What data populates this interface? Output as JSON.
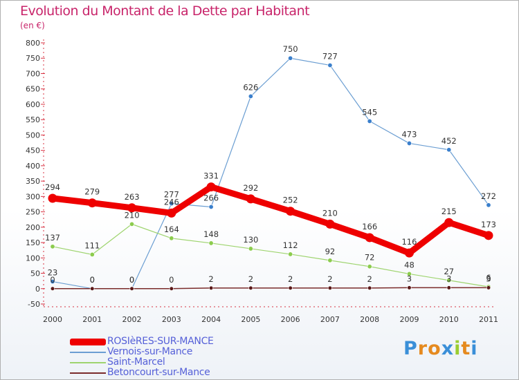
{
  "title": "Evolution du Montant de la Dette par Habitant",
  "subtitle": "(en €)",
  "brand": {
    "text": "Proxiti",
    "letter_colors": [
      "#3a8fd8",
      "#e58a1f",
      "#e58a1f",
      "#3a8fd8",
      "#9acd32",
      "#e58a1f",
      "#3a8fd8"
    ]
  },
  "chart_data": {
    "type": "line",
    "x": [
      "2000",
      "2001",
      "2002",
      "2003",
      "2004",
      "2005",
      "2006",
      "2007",
      "2008",
      "2009",
      "2010",
      "2011"
    ],
    "ylim": [
      -50,
      800
    ],
    "yticks": [
      "800",
      "750",
      "700",
      "650",
      "600",
      "550",
      "500",
      "450",
      "400",
      "350",
      "300",
      "250",
      "200",
      "150",
      "100",
      "50",
      "0",
      "-50"
    ],
    "ytick_values": [
      800,
      750,
      700,
      650,
      600,
      550,
      500,
      450,
      400,
      350,
      300,
      250,
      200,
      150,
      100,
      50,
      0,
      -50
    ],
    "grid": false,
    "legend_placement": "bottom-left",
    "series": [
      {
        "name": "ROSIèRES-SUR-MANCE",
        "color": "#ee0000",
        "values": [
          294,
          279,
          263,
          246,
          331,
          292,
          252,
          210,
          166,
          116,
          215,
          173
        ],
        "labels": [
          "294",
          "279",
          "263",
          "246",
          "331",
          "292",
          "252",
          "210",
          "166",
          "116",
          "215",
          "173"
        ]
      },
      {
        "name": "Vernois-sur-Mance",
        "color": "#6b9ed2",
        "values": [
          23,
          0,
          0,
          277,
          266,
          626,
          750,
          727,
          545,
          473,
          452,
          272
        ],
        "labels": [
          "23",
          "0",
          "0",
          "277",
          "266",
          "626",
          "750",
          "727",
          "545",
          "473",
          "452",
          "272"
        ]
      },
      {
        "name": "Saint-Marcel",
        "color": "#9ed46e",
        "values": [
          137,
          111,
          210,
          164,
          148,
          130,
          112,
          92,
          72,
          48,
          27,
          6
        ],
        "labels": [
          "137",
          "111",
          "210",
          "164",
          "148",
          "130",
          "112",
          "92",
          "72",
          "48",
          "27",
          "6"
        ]
      },
      {
        "name": "Betoncourt-sur-Mance",
        "color": "#7a2a2a",
        "values": [
          0,
          0,
          0,
          0,
          2,
          2,
          2,
          2,
          2,
          3,
          3,
          3
        ],
        "labels": [
          "0",
          "0",
          "0",
          "0",
          "2",
          "2",
          "2",
          "2",
          "2",
          "3",
          "3",
          "3"
        ]
      }
    ]
  }
}
